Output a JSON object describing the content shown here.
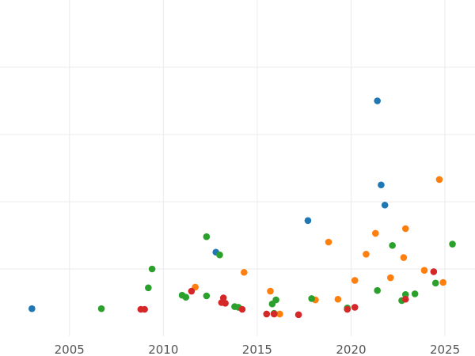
{
  "chart_data": {
    "type": "scatter",
    "title": "",
    "xlabel": "",
    "ylabel": "",
    "xlim": [
      2001.3,
      2026.6
    ],
    "ylim": [
      0,
      50
    ],
    "x_ticks": [
      2005,
      2010,
      2015,
      2020,
      2025
    ],
    "x_tick_labels": [
      "2005",
      "2010",
      "2015",
      "2020",
      "2025"
    ],
    "y_gridlines": [
      10,
      20,
      30,
      40
    ],
    "grid": true,
    "legend": "none",
    "series": [
      {
        "color": "#1f77b4",
        "points": [
          {
            "x": 2003.0,
            "y": 4.1
          },
          {
            "x": 2012.8,
            "y": 12.5
          },
          {
            "x": 2017.7,
            "y": 17.2
          },
          {
            "x": 2021.4,
            "y": 35.0
          },
          {
            "x": 2021.6,
            "y": 22.5
          },
          {
            "x": 2021.8,
            "y": 19.5
          }
        ]
      },
      {
        "color": "#ff7f0e",
        "points": [
          {
            "x": 2011.7,
            "y": 7.3
          },
          {
            "x": 2014.3,
            "y": 9.5
          },
          {
            "x": 2015.7,
            "y": 6.7
          },
          {
            "x": 2016.2,
            "y": 3.3
          },
          {
            "x": 2018.1,
            "y": 5.4
          },
          {
            "x": 2018.8,
            "y": 14.0
          },
          {
            "x": 2019.3,
            "y": 5.5
          },
          {
            "x": 2020.2,
            "y": 8.3
          },
          {
            "x": 2020.8,
            "y": 12.2
          },
          {
            "x": 2021.3,
            "y": 15.3
          },
          {
            "x": 2022.1,
            "y": 8.7
          },
          {
            "x": 2022.8,
            "y": 11.7
          },
          {
            "x": 2022.9,
            "y": 16.0
          },
          {
            "x": 2023.9,
            "y": 9.8
          },
          {
            "x": 2024.7,
            "y": 23.3
          },
          {
            "x": 2024.9,
            "y": 8.0
          }
        ]
      },
      {
        "color": "#2ca02c",
        "points": [
          {
            "x": 2006.7,
            "y": 4.1
          },
          {
            "x": 2009.2,
            "y": 7.2
          },
          {
            "x": 2009.4,
            "y": 10.0
          },
          {
            "x": 2011.0,
            "y": 6.1
          },
          {
            "x": 2011.2,
            "y": 5.8
          },
          {
            "x": 2012.3,
            "y": 6.0
          },
          {
            "x": 2012.3,
            "y": 14.8
          },
          {
            "x": 2013.0,
            "y": 12.1
          },
          {
            "x": 2013.8,
            "y": 4.4
          },
          {
            "x": 2014.0,
            "y": 4.3
          },
          {
            "x": 2015.8,
            "y": 4.8
          },
          {
            "x": 2016.0,
            "y": 5.4
          },
          {
            "x": 2015.9,
            "y": 3.4
          },
          {
            "x": 2017.9,
            "y": 5.6
          },
          {
            "x": 2019.8,
            "y": 4.2
          },
          {
            "x": 2021.4,
            "y": 6.8
          },
          {
            "x": 2022.2,
            "y": 13.5
          },
          {
            "x": 2022.7,
            "y": 5.3
          },
          {
            "x": 2022.9,
            "y": 6.2
          },
          {
            "x": 2023.4,
            "y": 6.3
          },
          {
            "x": 2024.5,
            "y": 7.9
          },
          {
            "x": 2025.4,
            "y": 13.7
          }
        ]
      },
      {
        "color": "#d62728",
        "points": [
          {
            "x": 2008.8,
            "y": 4.0
          },
          {
            "x": 2009.0,
            "y": 4.0
          },
          {
            "x": 2011.5,
            "y": 6.7
          },
          {
            "x": 2013.1,
            "y": 5.0
          },
          {
            "x": 2013.3,
            "y": 4.9
          },
          {
            "x": 2013.2,
            "y": 5.7
          },
          {
            "x": 2014.2,
            "y": 4.0
          },
          {
            "x": 2015.5,
            "y": 3.3
          },
          {
            "x": 2015.9,
            "y": 3.3
          },
          {
            "x": 2017.2,
            "y": 3.2
          },
          {
            "x": 2019.8,
            "y": 4.0
          },
          {
            "x": 2020.2,
            "y": 4.3
          },
          {
            "x": 2022.9,
            "y": 5.5
          },
          {
            "x": 2024.4,
            "y": 9.6
          }
        ]
      }
    ]
  }
}
